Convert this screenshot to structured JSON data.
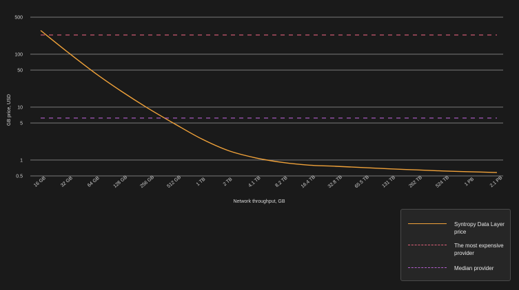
{
  "colors": {
    "background": "#1a1a1a",
    "grid": "#7a7a7a",
    "syntropy": "#f2a33a",
    "expensive": "#e0607a",
    "median": "#b65fd0"
  },
  "chart_data": {
    "type": "line",
    "xlabel": "Network throughput, GB",
    "ylabel": "GB price, USD",
    "yscale": "log",
    "ylim": [
      0.5,
      500
    ],
    "yticks": [
      0.5,
      1,
      5,
      10,
      50,
      100,
      500
    ],
    "ytick_labels": [
      "0.5",
      "1",
      "5",
      "10",
      "50",
      "100",
      "500"
    ],
    "categories": [
      "16 GB",
      "32 GB",
      "64 GB",
      "128 GB",
      "256 GB",
      "512 GB",
      "1 TB",
      "2 TB",
      "4.1 TB",
      "8.2 TB",
      "16.4 TB",
      "32.8 TB",
      "65.5 TB",
      "131 TB",
      "262 TB",
      "524 TB",
      "1 PB",
      "2.1 PB"
    ],
    "grid": true,
    "legend_position": "bottom-right",
    "series": [
      {
        "name": "Syntropy Data Layer price",
        "style": "solid",
        "color": "#f2a33a",
        "values": [
          280,
          110,
          45,
          20,
          9.5,
          4.8,
          2.5,
          1.5,
          1.1,
          0.9,
          0.8,
          0.76,
          0.72,
          0.68,
          0.65,
          0.62,
          0.6,
          0.58
        ]
      },
      {
        "name": "The most expensive provider",
        "style": "dashed",
        "color": "#e0607a",
        "values": [
          230,
          230,
          230,
          230,
          230,
          230,
          230,
          230,
          230,
          230,
          230,
          230,
          230,
          230,
          230,
          230,
          230,
          230
        ]
      },
      {
        "name": "Median provider",
        "style": "dashed",
        "color": "#b65fd0",
        "values": [
          6.2,
          6.2,
          6.2,
          6.2,
          6.2,
          6.2,
          6.2,
          6.2,
          6.2,
          6.2,
          6.2,
          6.2,
          6.2,
          6.2,
          6.2,
          6.2,
          6.2,
          6.2
        ]
      }
    ]
  },
  "legend": {
    "items": [
      {
        "label": "Syntropy Data Layer price",
        "color": "#f2a33a",
        "style": "solid"
      },
      {
        "label": "The most expensive provider",
        "color": "#e0607a",
        "style": "dashed"
      },
      {
        "label": "Median provider",
        "color": "#b65fd0",
        "style": "dashed"
      }
    ]
  }
}
